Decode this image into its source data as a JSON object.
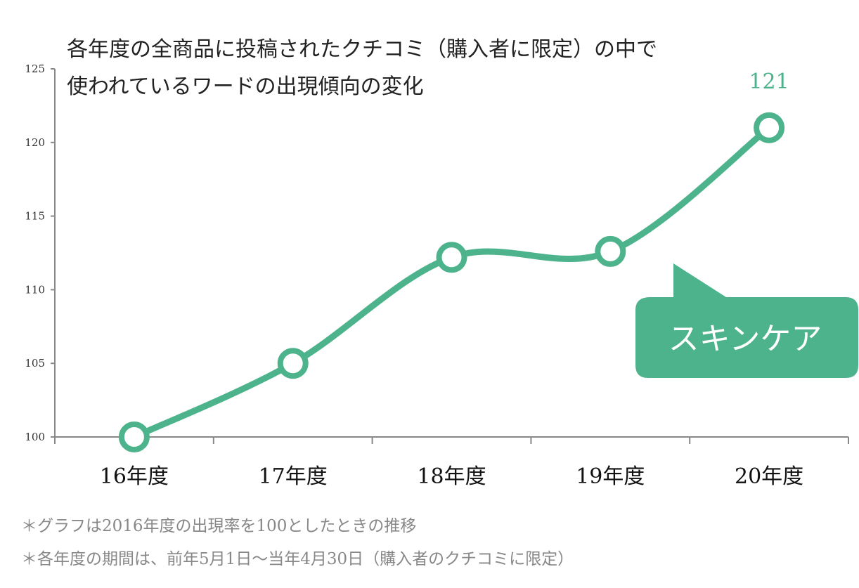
{
  "chart_data": {
    "type": "line",
    "title_lines": [
      "各年度の全商品に投稿されたクチコミ（購入者に限定）の中で",
      "使われているワードの出現傾向の変化"
    ],
    "categories": [
      "16年度",
      "17年度",
      "18年度",
      "19年度",
      "20年度"
    ],
    "series": [
      {
        "name": "スキンケア",
        "values": [
          100,
          105,
          112.2,
          112.6,
          121
        ]
      }
    ],
    "ylim": [
      100,
      125
    ],
    "yticks": [
      "100",
      "105",
      "110",
      "115",
      "120",
      "125"
    ],
    "data_labels": [
      {
        "category": "20年度",
        "text": "121"
      }
    ],
    "grid": false,
    "legend": "callout near last point",
    "color": "#4cb38c",
    "notes": [
      "＊グラフは2016年度の出現率を100としたときの推移",
      "＊各年度の期間は、前年5月1日～当年4月30日（購入者のクチコミに限定）"
    ]
  }
}
